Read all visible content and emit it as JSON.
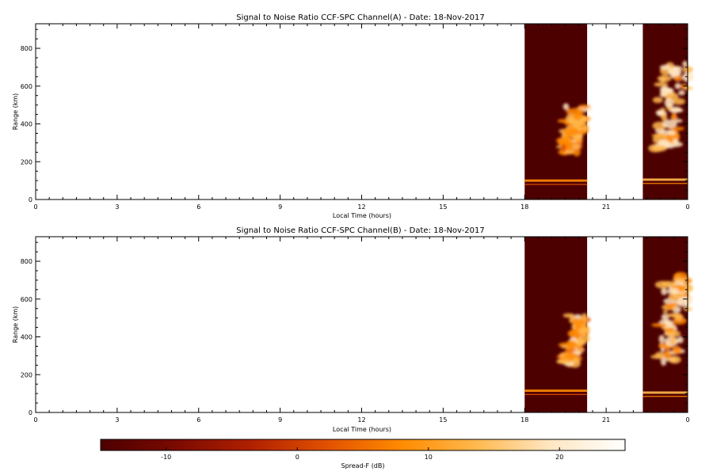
{
  "chart_data": [
    {
      "type": "heatmap",
      "title": "Signal to Noise Ratio CCF-SPC Channel(A) - Date: 18-Nov-2017",
      "xlabel": "Local Time (hours)",
      "ylabel": "Range (km)",
      "xlim": [
        0,
        24
      ],
      "ylim": [
        0,
        930
      ],
      "x_ticks": [
        "0",
        "3",
        "6",
        "9",
        "12",
        "15",
        "18",
        "21",
        "0"
      ],
      "y_ticks": [
        "0",
        "200",
        "400",
        "600",
        "800"
      ],
      "data_blocks": [
        {
          "x_start": 18.0,
          "x_end": 20.3
        },
        {
          "x_start": 22.35,
          "x_end": 24.0
        }
      ],
      "background_snr_db": -14,
      "features": [
        {
          "description": "horizontal echo layer",
          "x_range": [
            18.0,
            20.3
          ],
          "range_km": 100,
          "snr_db": 10
        },
        {
          "description": "horizontal echo layer",
          "x_range": [
            22.35,
            24.0
          ],
          "range_km": 105,
          "snr_db": 14
        },
        {
          "description": "spread-F plume",
          "x_range": [
            19.1,
            20.2
          ],
          "range_km": [
            250,
            500
          ],
          "snr_db": 18
        },
        {
          "description": "spread-F plume",
          "x_range": [
            22.4,
            24.0
          ],
          "range_km": [
            270,
            720
          ],
          "snr_db": 22
        }
      ]
    },
    {
      "type": "heatmap",
      "title": "Signal to Noise Ratio CCF-SPC Channel(B) - Date: 18-Nov-2017",
      "xlabel": "Local Time (hours)",
      "ylabel": "Range (km)",
      "xlim": [
        0,
        24
      ],
      "ylim": [
        0,
        930
      ],
      "x_ticks": [
        "0",
        "3",
        "6",
        "9",
        "12",
        "15",
        "18",
        "21",
        "0"
      ],
      "y_ticks": [
        "0",
        "200",
        "400",
        "600",
        "800"
      ],
      "data_blocks": [
        {
          "x_start": 18.0,
          "x_end": 20.3
        },
        {
          "x_start": 22.35,
          "x_end": 24.0
        }
      ],
      "background_snr_db": -14,
      "features": [
        {
          "description": "horizontal echo layer",
          "x_range": [
            18.0,
            20.3
          ],
          "range_km": 115,
          "snr_db": 10
        },
        {
          "description": "horizontal echo layer",
          "x_range": [
            22.35,
            24.0
          ],
          "range_km": 105,
          "snr_db": 14
        },
        {
          "description": "spread-F plume",
          "x_range": [
            19.1,
            20.2
          ],
          "range_km": [
            260,
            520
          ],
          "snr_db": 18
        },
        {
          "description": "spread-F plume",
          "x_range": [
            22.4,
            24.0
          ],
          "range_km": [
            270,
            740
          ],
          "snr_db": 22
        }
      ]
    }
  ],
  "colorbar": {
    "label": "Spread-F (dB)",
    "range": [
      -15,
      25
    ],
    "ticks": [
      {
        "value": -10,
        "label": "-10"
      },
      {
        "value": 0,
        "label": "0"
      },
      {
        "value": 10,
        "label": "10"
      },
      {
        "value": 20,
        "label": "20"
      }
    ],
    "colormap": [
      "#4d0000",
      "#7a0a00",
      "#b02000",
      "#e05000",
      "#ff8a00",
      "#ffb84d",
      "#ffe6c2",
      "#ffffff"
    ]
  }
}
